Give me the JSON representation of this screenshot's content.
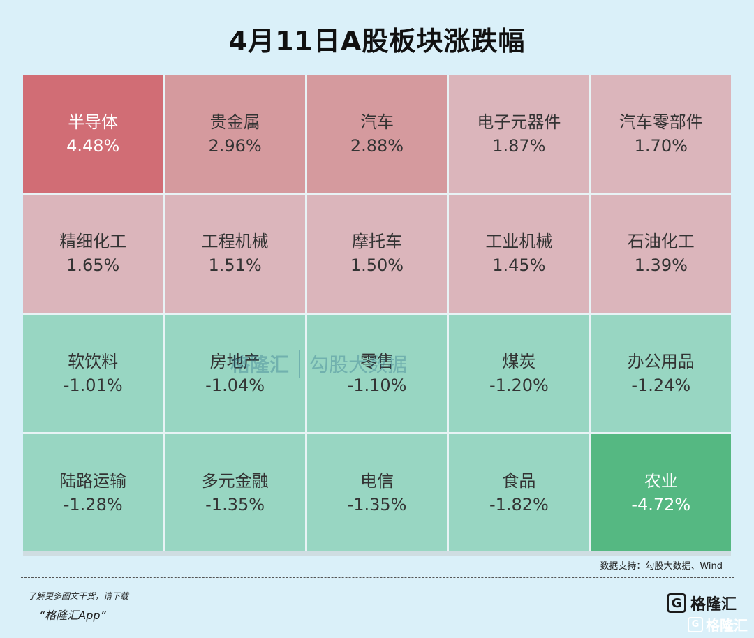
{
  "title": "4月11日A股板块涨跌幅",
  "source": "数据支持：勾股大数据、Wind",
  "promo": {
    "line1": "了解更多图文干货，请下载",
    "line2": "“格隆汇App”"
  },
  "brand": {
    "name": "格隆汇",
    "logo_letter": "G"
  },
  "watermark": {
    "left": "格隆汇",
    "right": "勾股大数据"
  },
  "colors": {
    "strong_red": "#d16d75",
    "mid_red": "#d59a9e",
    "light_red": "#dbb5bb",
    "light_green": "#98d6c2",
    "strong_green": "#55b882"
  },
  "chart_data": {
    "type": "heatmap",
    "title": "4月11日A股板块涨跌幅",
    "cells": [
      {
        "name": "半导体",
        "value": 4.48,
        "label": "4.48%"
      },
      {
        "name": "贵金属",
        "value": 2.96,
        "label": "2.96%"
      },
      {
        "name": "汽车",
        "value": 2.88,
        "label": "2.88%"
      },
      {
        "name": "电子元器件",
        "value": 1.87,
        "label": "1.87%"
      },
      {
        "name": "汽车零部件",
        "value": 1.7,
        "label": "1.70%"
      },
      {
        "name": "精细化工",
        "value": 1.65,
        "label": "1.65%"
      },
      {
        "name": "工程机械",
        "value": 1.51,
        "label": "1.51%"
      },
      {
        "name": "摩托车",
        "value": 1.5,
        "label": "1.50%"
      },
      {
        "name": "工业机械",
        "value": 1.45,
        "label": "1.45%"
      },
      {
        "name": "石油化工",
        "value": 1.39,
        "label": "1.39%"
      },
      {
        "name": "软饮料",
        "value": -1.01,
        "label": "-1.01%"
      },
      {
        "name": "房地产",
        "value": -1.04,
        "label": "-1.04%"
      },
      {
        "name": "零售",
        "value": -1.1,
        "label": "-1.10%"
      },
      {
        "name": "煤炭",
        "value": -1.2,
        "label": "-1.20%"
      },
      {
        "name": "办公用品",
        "value": -1.24,
        "label": "-1.24%"
      },
      {
        "name": "陆路运输",
        "value": -1.28,
        "label": "-1.28%"
      },
      {
        "name": "多元金融",
        "value": -1.35,
        "label": "-1.35%"
      },
      {
        "name": "电信",
        "value": -1.35,
        "label": "-1.35%"
      },
      {
        "name": "食品",
        "value": -1.82,
        "label": "-1.82%"
      },
      {
        "name": "农业",
        "value": -4.72,
        "label": "-4.72%"
      }
    ]
  }
}
